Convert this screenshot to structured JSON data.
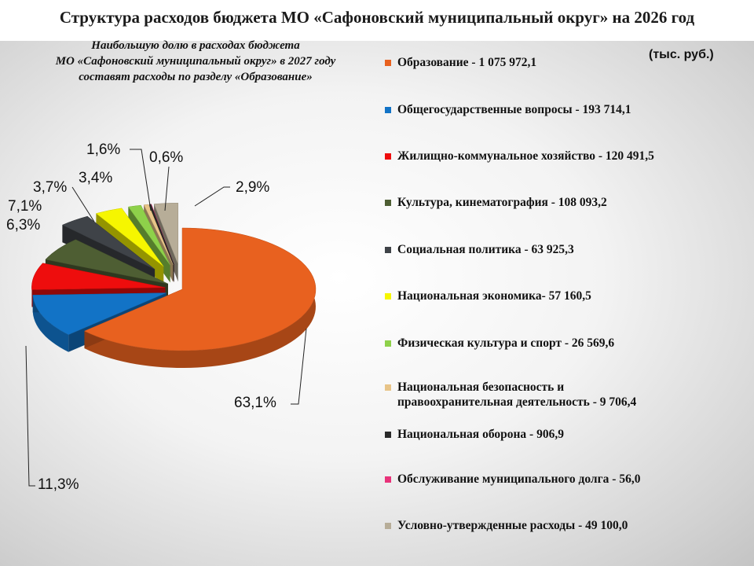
{
  "title": "Структура расходов бюджета  МО «Сафоновский муниципальный округ» на  2026  год",
  "subtitle": "Наибольшую долю в расходах бюджета\nМО «Сафоновский муниципальный округ» в 2027 году\nсоставят расходы по разделу «Образование»",
  "units": "(тыс. руб.)",
  "chart_data": {
    "type": "pie",
    "title": "Структура расходов бюджета  МО «Сафоновский муниципальный округ» на  2026  год",
    "unit": "тыс. руб.",
    "legend_position": "right",
    "series": [
      {
        "label": "Образование - 1 075 972,1",
        "value": 1075972.1,
        "percent_label": "63,1%",
        "color": "#e8611f"
      },
      {
        "label": "Общегосударственные вопросы - 193 714,1",
        "value": 193714.1,
        "percent_label": "11,3%",
        "color": "#1273c6"
      },
      {
        "label": "Жилищно-коммунальное хозяйство - 120 491,5",
        "value": 120491.5,
        "percent_label": "7,1%",
        "color": "#ee0d0d"
      },
      {
        "label": "Культура, кинематография - 108 093,2",
        "value": 108093.2,
        "percent_label": "6,3%",
        "color": "#4e5e33"
      },
      {
        "label": "Социальная политика - 63 925,3",
        "value": 63925.3,
        "percent_label": "3,7%",
        "color": "#3f4348"
      },
      {
        "label": "Национальная экономика- 57 160,5",
        "value": 57160.5,
        "percent_label": "3,4%",
        "color": "#f6f600"
      },
      {
        "label": "Физическая культура и спорт -  26 569,6",
        "value": 26569.6,
        "percent_label": "1,6%",
        "color": "#8ed14a"
      },
      {
        "label": "Национальная безопасность и\nправоохранительная деятельность -  9 706,4",
        "value": 9706.4,
        "percent_label": "0,6%",
        "color": "#e8c488"
      },
      {
        "label": "Национальная оборона -  906,9",
        "value": 906.9,
        "percent_label": "",
        "color": "#2a2a2a"
      },
      {
        "label": "Обслуживание муниципального  долга -  56,0",
        "value": 56.0,
        "percent_label": "",
        "color": "#e8337a"
      },
      {
        "label": "Условно-утвержденные расходы - 49 100,0",
        "value": 49100.0,
        "percent_label": "2,9%",
        "color": "#b7ad98"
      }
    ]
  }
}
